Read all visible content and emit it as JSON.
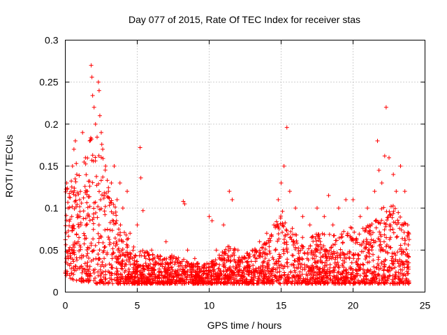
{
  "chart_data": {
    "type": "scatter",
    "title": "Day 077 of 2015, Rate Of TEC Index for receiver stas",
    "xlabel": "GPS time / hours",
    "ylabel": "ROTI / TECUs",
    "xlim": [
      0,
      25
    ],
    "ylim": [
      0,
      0.3
    ],
    "xticks": [
      0,
      5,
      10,
      15,
      20,
      25
    ],
    "xtick_labels": [
      "0",
      "5",
      "10",
      "15",
      "20",
      "25"
    ],
    "yticks": [
      0,
      0.05,
      0.1,
      0.15,
      0.2,
      0.25,
      0.3
    ],
    "ytick_labels": [
      "0",
      "0.05",
      "0.1",
      "0.15",
      "0.2",
      "0.25",
      "0.3"
    ],
    "grid": true,
    "marker": "+",
    "color": "#ff0000",
    "series": [
      {
        "name": "ROTI",
        "points": [
          [
            0.1,
            0.13
          ],
          [
            0.2,
            0.1
          ],
          [
            0.3,
            0.05
          ],
          [
            0.4,
            0.12
          ],
          [
            0.5,
            0.15
          ],
          [
            0.6,
            0.17
          ],
          [
            0.7,
            0.18
          ],
          [
            0.8,
            0.14
          ],
          [
            0.9,
            0.09
          ],
          [
            1.0,
            0.11
          ],
          [
            1.2,
            0.19
          ],
          [
            1.4,
            0.16
          ],
          [
            1.5,
            0.12
          ],
          [
            1.7,
            0.18
          ],
          [
            1.8,
            0.27
          ],
          [
            1.85,
            0.256
          ],
          [
            1.9,
            0.234
          ],
          [
            2.0,
            0.22
          ],
          [
            2.1,
            0.2
          ],
          [
            2.3,
            0.25
          ],
          [
            2.35,
            0.24
          ],
          [
            2.4,
            0.21
          ],
          [
            2.5,
            0.19
          ],
          [
            2.6,
            0.17
          ],
          [
            2.8,
            0.15
          ],
          [
            3.0,
            0.12
          ],
          [
            3.2,
            0.13
          ],
          [
            3.4,
            0.15
          ],
          [
            3.6,
            0.11
          ],
          [
            3.8,
            0.13
          ],
          [
            4.0,
            0.1
          ],
          [
            4.3,
            0.12
          ],
          [
            4.5,
            0.07
          ],
          [
            5.0,
            0.08
          ],
          [
            5.2,
            0.172
          ],
          [
            5.25,
            0.136
          ],
          [
            5.4,
            0.097
          ],
          [
            5.6,
            0.04
          ],
          [
            6.0,
            0.05
          ],
          [
            6.5,
            0.04
          ],
          [
            7.0,
            0.06
          ],
          [
            7.5,
            0.04
          ],
          [
            8.2,
            0.108
          ],
          [
            8.3,
            0.105
          ],
          [
            8.5,
            0.05
          ],
          [
            9.0,
            0.04
          ],
          [
            9.5,
            0.03
          ],
          [
            10.0,
            0.09
          ],
          [
            10.2,
            0.085
          ],
          [
            10.5,
            0.05
          ],
          [
            11.0,
            0.08
          ],
          [
            11.4,
            0.12
          ],
          [
            11.6,
            0.11
          ],
          [
            12.0,
            0.05
          ],
          [
            12.5,
            0.04
          ],
          [
            13.0,
            0.05
          ],
          [
            13.5,
            0.06
          ],
          [
            14.0,
            0.07
          ],
          [
            14.5,
            0.08
          ],
          [
            14.8,
            0.11
          ],
          [
            15.0,
            0.13
          ],
          [
            15.2,
            0.15
          ],
          [
            15.4,
            0.196
          ],
          [
            15.6,
            0.12
          ],
          [
            16.0,
            0.1
          ],
          [
            16.5,
            0.09
          ],
          [
            17.0,
            0.08
          ],
          [
            17.5,
            0.1
          ],
          [
            18.0,
            0.09
          ],
          [
            18.3,
            0.115
          ],
          [
            18.6,
            0.08
          ],
          [
            19.0,
            0.1
          ],
          [
            19.5,
            0.11
          ],
          [
            20.0,
            0.11
          ],
          [
            20.5,
            0.09
          ],
          [
            21.0,
            0.1
          ],
          [
            21.5,
            0.12
          ],
          [
            21.7,
            0.18
          ],
          [
            21.8,
            0.145
          ],
          [
            22.0,
            0.13
          ],
          [
            22.2,
            0.162
          ],
          [
            22.3,
            0.22
          ],
          [
            22.5,
            0.16
          ],
          [
            22.8,
            0.14
          ],
          [
            23.0,
            0.12
          ],
          [
            23.3,
            0.15
          ],
          [
            23.6,
            0.12
          ],
          [
            23.8,
            0.08
          ]
        ]
      }
    ],
    "density_envelope": {
      "x": [
        0,
        0.5,
        1,
        1.5,
        2,
        2.5,
        3,
        3.5,
        4,
        4.5,
        5,
        5.5,
        6,
        6.5,
        7,
        7.5,
        8,
        8.5,
        9,
        9.5,
        10,
        10.5,
        11,
        11.5,
        12,
        12.5,
        13,
        13.5,
        14,
        14.5,
        15,
        15.5,
        16,
        16.5,
        17,
        17.5,
        18,
        18.5,
        19,
        19.5,
        20,
        20.5,
        21,
        21.5,
        22,
        22.5,
        23,
        23.5,
        23.9
      ],
      "upper": [
        0.12,
        0.15,
        0.16,
        0.17,
        0.2,
        0.18,
        0.13,
        0.1,
        0.08,
        0.06,
        0.05,
        0.05,
        0.045,
        0.045,
        0.04,
        0.045,
        0.04,
        0.04,
        0.035,
        0.035,
        0.035,
        0.04,
        0.05,
        0.06,
        0.045,
        0.045,
        0.05,
        0.055,
        0.06,
        0.075,
        0.1,
        0.09,
        0.07,
        0.065,
        0.065,
        0.07,
        0.07,
        0.07,
        0.07,
        0.075,
        0.08,
        0.075,
        0.08,
        0.09,
        0.1,
        0.11,
        0.1,
        0.09,
        0.07
      ],
      "lower": [
        0.02,
        0.015,
        0.012,
        0.012,
        0.01,
        0.01,
        0.01,
        0.01,
        0.01,
        0.01,
        0.01,
        0.01,
        0.01,
        0.01,
        0.01,
        0.01,
        0.01,
        0.01,
        0.01,
        0.01,
        0.01,
        0.01,
        0.01,
        0.01,
        0.01,
        0.01,
        0.01,
        0.01,
        0.01,
        0.01,
        0.01,
        0.01,
        0.01,
        0.01,
        0.01,
        0.01,
        0.01,
        0.01,
        0.01,
        0.01,
        0.01,
        0.01,
        0.01,
        0.01,
        0.01,
        0.01,
        0.01,
        0.01,
        0.01
      ]
    }
  }
}
